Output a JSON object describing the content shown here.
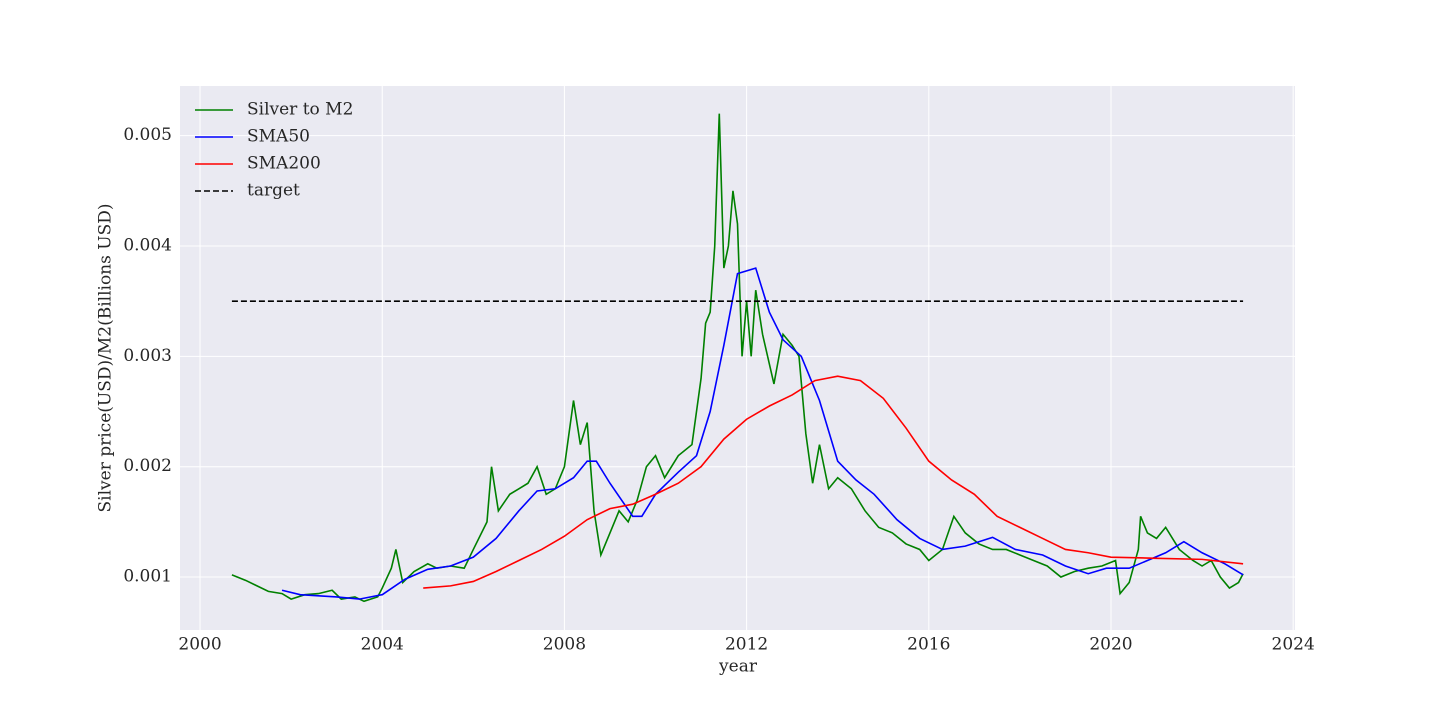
{
  "chart_data": {
    "type": "line",
    "x_label": "year",
    "y_label": "Silver price(USD)/M2(Billions USD)",
    "xlim": [
      1999.56,
      2024.04
    ],
    "xticks": [
      2000,
      2004,
      2008,
      2012,
      2016,
      2020,
      2024
    ],
    "ylim": [
      0.00052,
      0.00545
    ],
    "yticks": [
      0.001,
      0.002,
      0.003,
      0.004,
      0.005
    ],
    "grid": true,
    "legend": "upper left",
    "series": [
      {
        "name": "Silver to M2",
        "color": "#008000",
        "linestyle": "solid",
        "x": [
          2000.7,
          2001.0,
          2001.2,
          2001.5,
          2001.8,
          2002.0,
          2002.3,
          2002.6,
          2002.9,
          2003.1,
          2003.4,
          2003.6,
          2003.9,
          2004.0,
          2004.2,
          2004.3,
          2004.45,
          2004.7,
          2005.0,
          2005.2,
          2005.5,
          2005.8,
          2006.0,
          2006.3,
          2006.4,
          2006.55,
          2006.8,
          2007.0,
          2007.2,
          2007.4,
          2007.6,
          2007.8,
          2008.0,
          2008.2,
          2008.35,
          2008.5,
          2008.65,
          2008.8,
          2009.0,
          2009.2,
          2009.4,
          2009.6,
          2009.8,
          2010.0,
          2010.2,
          2010.5,
          2010.8,
          2011.0,
          2011.1,
          2011.2,
          2011.3,
          2011.4,
          2011.5,
          2011.6,
          2011.7,
          2011.8,
          2011.9,
          2012.0,
          2012.1,
          2012.2,
          2012.35,
          2012.6,
          2012.8,
          2013.0,
          2013.15,
          2013.3,
          2013.45,
          2013.6,
          2013.8,
          2014.0,
          2014.3,
          2014.6,
          2014.9,
          2015.2,
          2015.5,
          2015.8,
          2016.0,
          2016.3,
          2016.55,
          2016.8,
          2017.1,
          2017.4,
          2017.7,
          2018.0,
          2018.3,
          2018.6,
          2018.9,
          2019.2,
          2019.5,
          2019.8,
          2020.1,
          2020.2,
          2020.4,
          2020.6,
          2020.65,
          2020.8,
          2021.0,
          2021.2,
          2021.5,
          2021.8,
          2022.0,
          2022.2,
          2022.4,
          2022.6,
          2022.8,
          2022.9
        ],
        "values": [
          0.00102,
          0.00097,
          0.00093,
          0.00087,
          0.00085,
          0.0008,
          0.00084,
          0.00085,
          0.00088,
          0.0008,
          0.00082,
          0.00078,
          0.00082,
          0.0009,
          0.00108,
          0.00125,
          0.00095,
          0.00105,
          0.00112,
          0.00108,
          0.0011,
          0.00108,
          0.00125,
          0.0015,
          0.002,
          0.0016,
          0.00175,
          0.0018,
          0.00185,
          0.002,
          0.00175,
          0.0018,
          0.002,
          0.0026,
          0.0022,
          0.0024,
          0.0016,
          0.0012,
          0.0014,
          0.0016,
          0.0015,
          0.0017,
          0.002,
          0.0021,
          0.0019,
          0.0021,
          0.0022,
          0.0028,
          0.0033,
          0.0034,
          0.004,
          0.0052,
          0.0038,
          0.004,
          0.0045,
          0.0042,
          0.003,
          0.0035,
          0.003,
          0.0036,
          0.0032,
          0.00275,
          0.0032,
          0.0031,
          0.003,
          0.0023,
          0.00185,
          0.0022,
          0.0018,
          0.0019,
          0.0018,
          0.0016,
          0.00145,
          0.0014,
          0.0013,
          0.00125,
          0.00115,
          0.00125,
          0.00155,
          0.0014,
          0.0013,
          0.00125,
          0.00125,
          0.0012,
          0.00115,
          0.0011,
          0.001,
          0.00105,
          0.00108,
          0.0011,
          0.00115,
          0.00085,
          0.00095,
          0.00125,
          0.00155,
          0.0014,
          0.00135,
          0.00145,
          0.00125,
          0.00115,
          0.0011,
          0.00115,
          0.001,
          0.0009,
          0.00095,
          0.00103
        ]
      },
      {
        "name": "SMA50",
        "color": "#0000ff",
        "linestyle": "solid",
        "x": [
          2001.8,
          2002.2,
          2003.0,
          2003.5,
          2004.0,
          2004.5,
          2005.0,
          2005.5,
          2006.0,
          2006.5,
          2007.0,
          2007.4,
          2007.8,
          2008.2,
          2008.5,
          2008.7,
          2009.0,
          2009.5,
          2009.7,
          2010.0,
          2010.5,
          2010.9,
          2011.2,
          2011.5,
          2011.8,
          2012.2,
          2012.5,
          2012.8,
          2013.2,
          2013.6,
          2014.0,
          2014.4,
          2014.8,
          2015.3,
          2015.8,
          2016.3,
          2016.8,
          2017.4,
          2017.9,
          2018.5,
          2019.0,
          2019.5,
          2019.9,
          2020.4,
          2020.8,
          2021.2,
          2021.6,
          2022.0,
          2022.5,
          2022.9
        ],
        "values": [
          0.00088,
          0.00084,
          0.00082,
          0.0008,
          0.00084,
          0.00098,
          0.00107,
          0.0011,
          0.00118,
          0.00135,
          0.0016,
          0.00178,
          0.0018,
          0.0019,
          0.00205,
          0.00205,
          0.00185,
          0.00155,
          0.00155,
          0.00175,
          0.00195,
          0.0021,
          0.0025,
          0.0031,
          0.00375,
          0.0038,
          0.0034,
          0.00315,
          0.003,
          0.0026,
          0.00205,
          0.00188,
          0.00175,
          0.00152,
          0.00135,
          0.00125,
          0.00128,
          0.00136,
          0.00125,
          0.0012,
          0.0011,
          0.00103,
          0.00108,
          0.00108,
          0.00115,
          0.00122,
          0.00132,
          0.00122,
          0.00112,
          0.00102
        ]
      },
      {
        "name": "SMA200",
        "color": "#ff0000",
        "linestyle": "solid",
        "x": [
          2004.9,
          2005.5,
          2006.0,
          2006.5,
          2007.0,
          2007.5,
          2008.0,
          2008.5,
          2009.0,
          2009.5,
          2010.0,
          2010.5,
          2011.0,
          2011.5,
          2012.0,
          2012.5,
          2013.0,
          2013.5,
          2014.0,
          2014.5,
          2015.0,
          2015.5,
          2016.0,
          2016.5,
          2017.0,
          2017.5,
          2018.0,
          2018.5,
          2019.0,
          2019.5,
          2020.0,
          2021.0,
          2022.0,
          2022.9
        ],
        "values": [
          0.0009,
          0.00092,
          0.00096,
          0.00105,
          0.00115,
          0.00125,
          0.00137,
          0.00152,
          0.00162,
          0.00166,
          0.00175,
          0.00185,
          0.002,
          0.00225,
          0.00243,
          0.00255,
          0.00265,
          0.00278,
          0.00282,
          0.00278,
          0.00262,
          0.00235,
          0.00205,
          0.00188,
          0.00175,
          0.00155,
          0.00145,
          0.00135,
          0.00125,
          0.00122,
          0.00118,
          0.00117,
          0.00116,
          0.00112
        ]
      },
      {
        "name": "target",
        "color": "#000000",
        "linestyle": "dashed",
        "x": [
          2000.7,
          2022.9
        ],
        "values": [
          0.0035,
          0.0035
        ]
      }
    ]
  }
}
